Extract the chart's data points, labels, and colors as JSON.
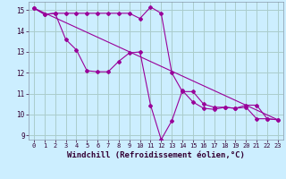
{
  "bg_color": "#cceeff",
  "grid_color": "#aacccc",
  "line_color": "#990099",
  "marker_color": "#990099",
  "xlabel": "Windchill (Refroidissement éolien,°C)",
  "xlabel_fontsize": 6.5,
  "xlim": [
    -0.5,
    23.5
  ],
  "ylim": [
    8.8,
    15.4
  ],
  "yticks": [
    9,
    10,
    11,
    12,
    13,
    14,
    15
  ],
  "xticks": [
    0,
    1,
    2,
    3,
    4,
    5,
    6,
    7,
    8,
    9,
    10,
    11,
    12,
    13,
    14,
    15,
    16,
    17,
    18,
    19,
    20,
    21,
    22,
    23
  ],
  "series1_x": [
    0,
    1,
    2,
    3,
    4,
    5,
    6,
    7,
    8,
    9,
    10,
    11,
    12,
    13,
    14,
    15,
    16,
    17,
    18,
    19,
    20,
    21,
    22,
    23
  ],
  "series1_y": [
    15.1,
    14.8,
    14.85,
    14.85,
    14.85,
    14.85,
    14.85,
    14.85,
    14.85,
    14.85,
    14.6,
    15.15,
    14.85,
    12.0,
    11.1,
    11.1,
    10.5,
    10.35,
    10.35,
    10.3,
    10.35,
    9.8,
    9.8,
    9.75
  ],
  "series2_x": [
    0,
    1,
    2,
    3,
    4,
    5,
    6,
    7,
    8,
    9,
    10,
    11,
    12,
    13,
    14,
    15,
    16,
    17,
    18,
    19,
    20,
    21,
    22,
    23
  ],
  "series2_y": [
    15.1,
    14.8,
    14.85,
    13.6,
    13.1,
    12.1,
    12.05,
    12.05,
    12.55,
    12.95,
    13.0,
    10.45,
    8.8,
    9.7,
    11.15,
    10.6,
    10.3,
    10.25,
    10.35,
    10.3,
    10.45,
    10.45,
    9.8,
    9.75
  ],
  "series3_x": [
    0,
    23
  ],
  "series3_y": [
    15.1,
    9.75
  ]
}
